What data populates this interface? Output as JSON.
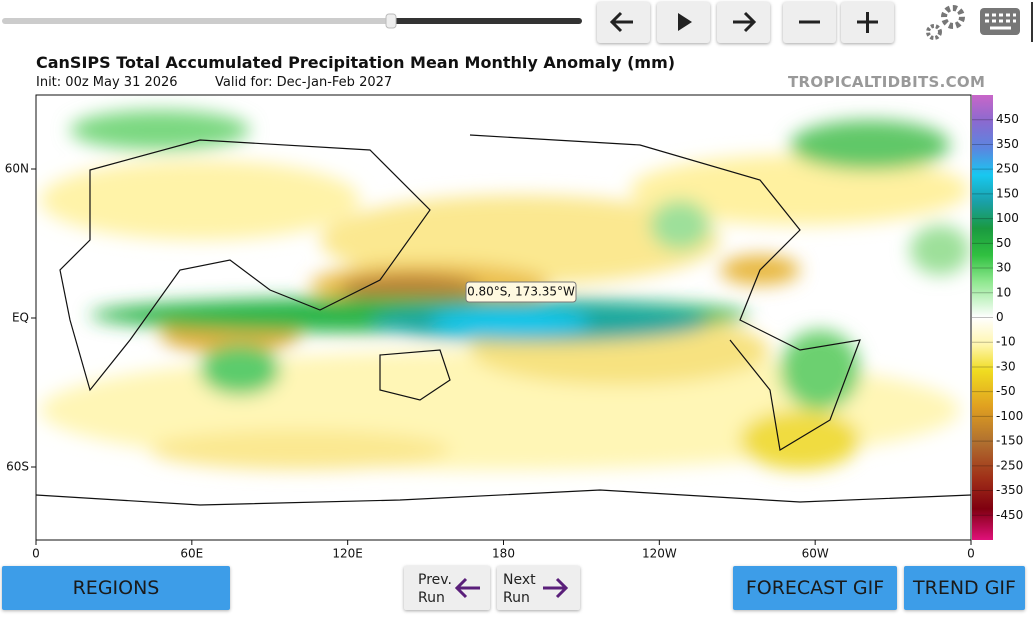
{
  "header": {
    "title": "CanSIPS Total Accumulated Precipitation Mean Monthly Anomaly (mm)",
    "init": "Init: 00z May 31 2026",
    "valid": "Valid for: Dec-Jan-Feb 2027",
    "brand": "TROPICALTIDBITS.COM"
  },
  "map": {
    "x_labels": [
      "0",
      "60E",
      "120E",
      "180",
      "120W",
      "60W",
      "0"
    ],
    "y_labels": [
      "60N",
      "EQ",
      "60S"
    ],
    "tooltip": "0.80°S, 173.35°W"
  },
  "colorbar": {
    "labels": [
      450,
      350,
      250,
      150,
      100,
      50,
      30,
      10,
      0,
      -10,
      -30,
      -50,
      -100,
      -150,
      -250,
      -350,
      -450
    ]
  },
  "buttons": {
    "regions": "REGIONS",
    "prev": [
      "Prev.",
      "Run"
    ],
    "next": [
      "Next",
      "Run"
    ],
    "forecast_gif": "FORECAST GIF",
    "trend_gif": "TREND GIF"
  }
}
